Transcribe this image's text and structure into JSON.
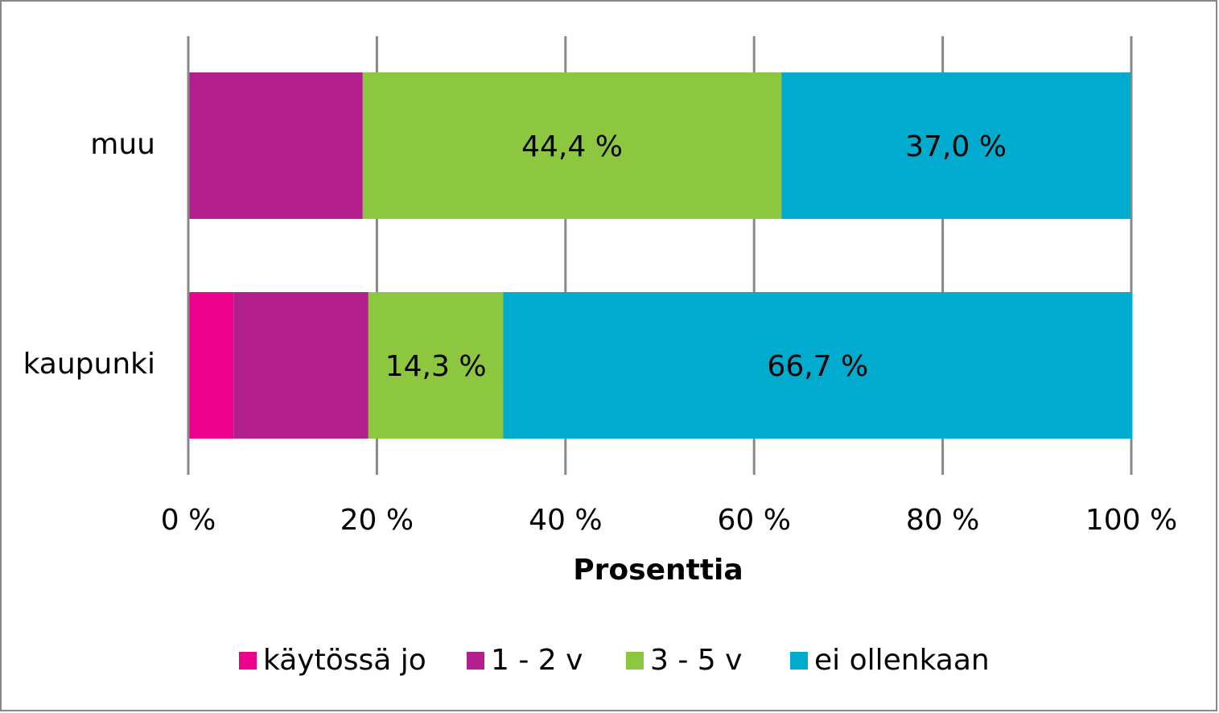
{
  "chart_data": {
    "type": "stacked-bar-horizontal",
    "categories": [
      "muu",
      "kaupunki"
    ],
    "series": [
      {
        "name": "käytössä jo",
        "color": "#ec008c",
        "values": [
          0,
          4.8
        ],
        "value_labels": [
          null,
          null
        ]
      },
      {
        "name": "1 - 2 v",
        "color": "#b31e8d",
        "values": [
          18.5,
          14.3
        ],
        "value_labels": [
          null,
          null
        ]
      },
      {
        "name": "3 - 5 v",
        "color": "#8dc63f",
        "values": [
          44.4,
          14.3
        ],
        "value_labels": [
          "44,4 %",
          "14,3 %"
        ]
      },
      {
        "name": "ei ollenkaan",
        "color": "#00abcd",
        "values": [
          37.0,
          66.7
        ],
        "value_labels": [
          "37,0 %",
          "66,7 %"
        ]
      }
    ],
    "xlim": [
      0,
      100
    ],
    "xticks": [
      {
        "value": 0,
        "label": "0 %"
      },
      {
        "value": 20,
        "label": "20 %"
      },
      {
        "value": 40,
        "label": "40 %"
      },
      {
        "value": 60,
        "label": "60 %"
      },
      {
        "value": 80,
        "label": "80 %"
      },
      {
        "value": 100,
        "label": "100 %"
      }
    ],
    "x_label": "Prosenttia",
    "grid": true,
    "legend": "bottom"
  }
}
